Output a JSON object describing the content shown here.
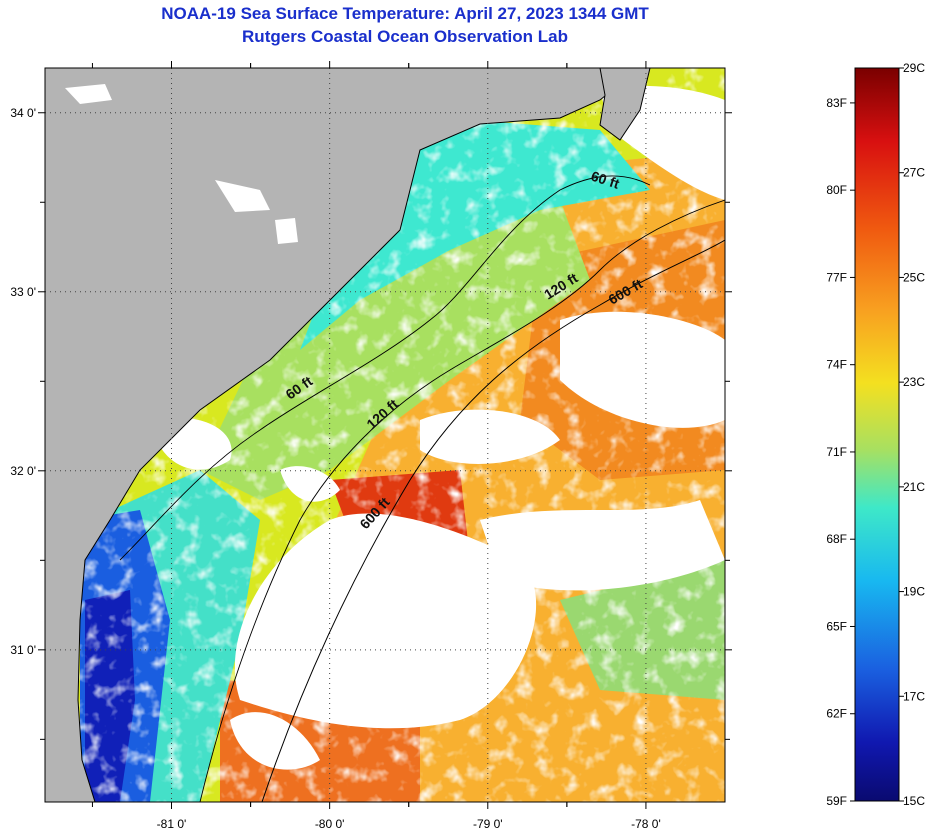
{
  "header": {
    "title": "NOAA-19 Sea Surface Temperature:  April 27, 2023 1344 GMT",
    "subtitle": "Rutgers Coastal Ocean Observation Lab"
  },
  "map": {
    "lat_ticks": [
      {
        "value": 34,
        "label": "34 0'"
      },
      {
        "value": 33,
        "label": "33 0'"
      },
      {
        "value": 32,
        "label": "32 0'"
      },
      {
        "value": 31,
        "label": "31 0'"
      }
    ],
    "lon_ticks": [
      {
        "value": -81,
        "label": "-81 0'"
      },
      {
        "value": -80,
        "label": "-80 0'"
      },
      {
        "value": -79,
        "label": "-79 0'"
      },
      {
        "value": -78,
        "label": "-78 0'"
      }
    ],
    "lat_range": [
      30.15,
      34.25
    ],
    "lon_range": [
      -81.8,
      -77.5
    ],
    "grid": "dotted",
    "land_color": "#b4b4b4",
    "cloud_color": "#ffffff",
    "contours": [
      {
        "label": "60 ft"
      },
      {
        "label": "120 ft"
      },
      {
        "label": "600 ft"
      }
    ]
  },
  "colorbar": {
    "celsius_labels": [
      "29C",
      "27C",
      "25C",
      "23C",
      "21C",
      "19C",
      "17C",
      "15C"
    ],
    "fahrenheit_labels": [
      "83F",
      "80F",
      "77F",
      "74F",
      "71F",
      "68F",
      "65F",
      "62F",
      "59F"
    ],
    "celsius_range": [
      15,
      29
    ],
    "colors": [
      "#7a0000",
      "#d81010",
      "#f05a10",
      "#f8a020",
      "#f4e020",
      "#a8e060",
      "#3ee8c8",
      "#18b8f0",
      "#1a60e0",
      "#1018b0",
      "#0a0a70"
    ]
  }
}
